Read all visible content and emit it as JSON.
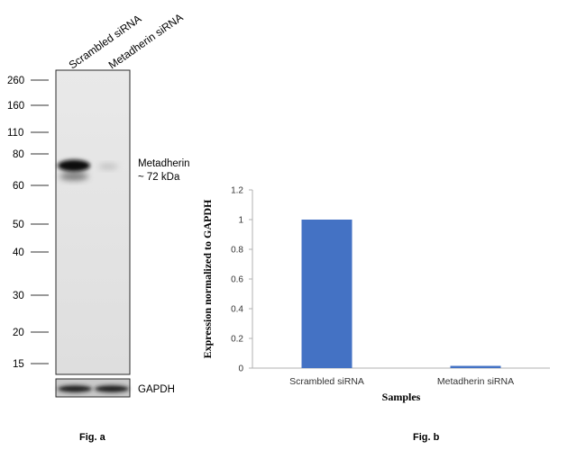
{
  "blot": {
    "lanes": [
      "Scrambled siRNA",
      "Metadherin siRNA"
    ],
    "markers": [
      "260",
      "160",
      "110",
      "80",
      "60",
      "50",
      "40",
      "30",
      "20",
      "15"
    ],
    "target_label": [
      "Metadherin",
      "~ 72 kDa"
    ],
    "loading_label": "GAPDH",
    "figure_label": "Fig. a"
  },
  "chart_data": {
    "type": "bar",
    "categories": [
      "Scrambled siRNA",
      "Metadherin siRNA"
    ],
    "values": [
      1.0,
      0.015
    ],
    "xlabel": "Samples",
    "ylabel": "Expression normalized to GAPDH",
    "ylim": [
      0,
      1.2
    ],
    "yticks": [
      "0",
      "0.2",
      "0.4",
      "0.6",
      "0.8",
      "1",
      "1.2"
    ],
    "bar_color": "#4472C4",
    "grid": false,
    "figure_label": "Fig. b"
  }
}
